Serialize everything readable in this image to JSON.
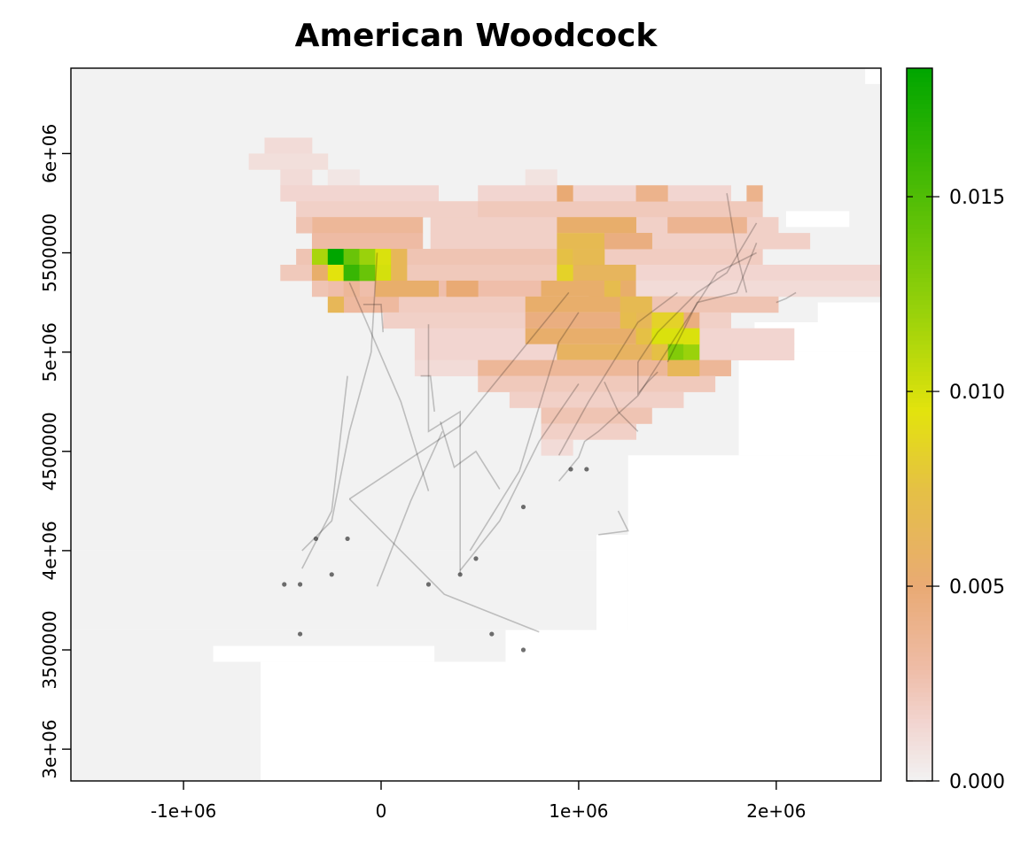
{
  "chart_data": {
    "type": "heatmap",
    "title": "American Woodcock",
    "xlabel": "",
    "ylabel": "",
    "xlim": [
      -1570000,
      2530000
    ],
    "ylim": [
      2840000,
      6430000
    ],
    "x_ticks": [
      {
        "value": -1000000,
        "label": "-1e+06"
      },
      {
        "value": 0,
        "label": "0"
      },
      {
        "value": 1000000,
        "label": "1e+06"
      },
      {
        "value": 2000000,
        "label": "2e+06"
      }
    ],
    "y_ticks": [
      {
        "value": 3000000,
        "label": "3e+06"
      },
      {
        "value": 3500000,
        "label": "3500000"
      },
      {
        "value": 4000000,
        "label": "4e+06"
      },
      {
        "value": 4500000,
        "label": "4500000"
      },
      {
        "value": 5000000,
        "label": "5e+06"
      },
      {
        "value": 5500000,
        "label": "5500000"
      },
      {
        "value": 6000000,
        "label": "6e+06"
      }
    ],
    "colorbar": {
      "min": 0.0,
      "max": 0.0183,
      "ticks": [
        {
          "value": 0.0,
          "label": "0.000"
        },
        {
          "value": 0.005,
          "label": "0.005"
        },
        {
          "value": 0.01,
          "label": "0.010"
        },
        {
          "value": 0.015,
          "label": "0.015"
        }
      ],
      "stops": [
        {
          "value": 0.0,
          "color": "#f2f2f2"
        },
        {
          "value": 0.0015,
          "color": "#f2d5d0"
        },
        {
          "value": 0.003,
          "color": "#eebba4"
        },
        {
          "value": 0.005,
          "color": "#e9aa74"
        },
        {
          "value": 0.0075,
          "color": "#e5c045"
        },
        {
          "value": 0.0095,
          "color": "#e3e30d"
        },
        {
          "value": 0.012,
          "color": "#9ad20b"
        },
        {
          "value": 0.0183,
          "color": "#00a600"
        }
      ]
    },
    "na_color": "#ffffff",
    "cell_size": 80000,
    "grid_origin": {
      "x": -1570000,
      "y": 6430000
    },
    "grid_cols": 51,
    "grid_rows": 45,
    "background_blocks": [
      {
        "x0": -1570000,
        "x1": 2530000,
        "y0": 4000000,
        "y1": 6430000,
        "value": 0.0
      },
      {
        "x0": -1570000,
        "x1": 2530000,
        "y0": 3600000,
        "y1": 4000000,
        "value": 0.0
      },
      {
        "x0": -1570000,
        "x1": 630000,
        "y0": 2840000,
        "y1": 3600000,
        "value": 0.0
      }
    ],
    "white_blocks": [
      {
        "x0": -610000,
        "x1": 1010000,
        "y0": 2840000,
        "y1": 3440000
      },
      {
        "x0": -850000,
        "x1": 270000,
        "y0": 3440000,
        "y1": 3520000
      },
      {
        "x0": 1010000,
        "x1": 2530000,
        "y0": 2840000,
        "y1": 3520000
      },
      {
        "x0": 1250000,
        "x1": 2530000,
        "y0": 3520000,
        "y1": 4480000
      },
      {
        "x0": 1090000,
        "x1": 1250000,
        "y0": 3520000,
        "y1": 4080000
      },
      {
        "x0": 1810000,
        "x1": 2530000,
        "y0": 4480000,
        "y1": 5000000
      },
      {
        "x0": 1890000,
        "x1": 2530000,
        "y0": 5000000,
        "y1": 5150000
      },
      {
        "x0": 2210000,
        "x1": 2530000,
        "y0": 5150000,
        "y1": 5250000
      },
      {
        "x0": 2050000,
        "x1": 2370000,
        "y0": 5630000,
        "y1": 5710000
      },
      {
        "x0": 2450000,
        "x1": 2530000,
        "y0": 6350000,
        "y1": 6430000
      }
    ],
    "cells": [
      {
        "x": -590000,
        "y": 6000000,
        "w": 3,
        "h": 1,
        "value": 0.0012
      },
      {
        "x": -670000,
        "y": 5920000,
        "w": 5,
        "h": 1,
        "value": 0.001
      },
      {
        "x": -510000,
        "y": 5840000,
        "w": 2,
        "h": 1,
        "value": 0.0012
      },
      {
        "x": -270000,
        "y": 5840000,
        "w": 2,
        "h": 1,
        "value": 0.0006
      },
      {
        "x": -510000,
        "y": 5760000,
        "w": 10,
        "h": 1,
        "value": 0.0015
      },
      {
        "x": -430000,
        "y": 5680000,
        "w": 13,
        "h": 1,
        "value": 0.0018
      },
      {
        "x": 730000,
        "y": 5840000,
        "w": 2,
        "h": 1,
        "value": 0.0008
      },
      {
        "x": 490000,
        "y": 5760000,
        "w": 16,
        "h": 1,
        "value": 0.0015
      },
      {
        "x": 490000,
        "y": 5680000,
        "w": 18,
        "h": 1,
        "value": 0.0022
      },
      {
        "x": 890000,
        "y": 5760000,
        "w": 1,
        "h": 1,
        "value": 0.005
      },
      {
        "x": 1290000,
        "y": 5760000,
        "w": 2,
        "h": 1,
        "value": 0.004
      },
      {
        "x": 1850000,
        "y": 5760000,
        "w": 1,
        "h": 1,
        "value": 0.004
      },
      {
        "x": -350000,
        "y": 5600000,
        "w": 7,
        "h": 1,
        "value": 0.0035
      },
      {
        "x": -430000,
        "y": 5600000,
        "w": 1,
        "h": 1,
        "value": 0.0025
      },
      {
        "x": 250000,
        "y": 5600000,
        "w": 22,
        "h": 1,
        "value": 0.0018
      },
      {
        "x": 890000,
        "y": 5600000,
        "w": 5,
        "h": 1,
        "value": 0.0055
      },
      {
        "x": -350000,
        "y": 5520000,
        "w": 7,
        "h": 1,
        "value": 0.003
      },
      {
        "x": 250000,
        "y": 5520000,
        "w": 24,
        "h": 1,
        "value": 0.0018
      },
      {
        "x": 890000,
        "y": 5520000,
        "w": 6,
        "h": 1,
        "value": 0.0068
      },
      {
        "x": -430000,
        "y": 5440000,
        "w": 29,
        "h": 1,
        "value": 0.0025
      },
      {
        "x": 1130000,
        "y": 5440000,
        "w": 10,
        "h": 1,
        "value": 0.002
      },
      {
        "x": -510000,
        "y": 5360000,
        "w": 30,
        "h": 1,
        "value": 0.0022
      },
      {
        "x": -270000,
        "y": 5280000,
        "w": 25,
        "h": 1,
        "value": 0.0028
      },
      {
        "x": 890000,
        "y": 5360000,
        "w": 5,
        "h": 1,
        "value": 0.0062
      },
      {
        "x": 810000,
        "y": 5280000,
        "w": 8,
        "h": 1,
        "value": 0.0055
      },
      {
        "x": 1290000,
        "y": 5360000,
        "w": 16,
        "h": 1,
        "value": 0.0015
      },
      {
        "x": 1290000,
        "y": 5280000,
        "w": 19,
        "h": 1,
        "value": 0.0012
      },
      {
        "x": -190000,
        "y": 5200000,
        "w": 6,
        "h": 1,
        "value": 0.0032
      },
      {
        "x": 90000,
        "y": 5200000,
        "w": 12,
        "h": 1,
        "value": 0.002
      },
      {
        "x": 730000,
        "y": 5200000,
        "w": 11,
        "h": 1,
        "value": 0.0055
      },
      {
        "x": 1370000,
        "y": 5200000,
        "w": 8,
        "h": 1,
        "value": 0.0025
      },
      {
        "x": 10000,
        "y": 5120000,
        "w": 22,
        "h": 1,
        "value": 0.0018
      },
      {
        "x": 730000,
        "y": 5120000,
        "w": 11,
        "h": 1,
        "value": 0.0045
      },
      {
        "x": 170000,
        "y": 5040000,
        "w": 24,
        "h": 1,
        "value": 0.0015
      },
      {
        "x": 730000,
        "y": 5040000,
        "w": 11,
        "h": 1,
        "value": 0.0055
      },
      {
        "x": 170000,
        "y": 4960000,
        "w": 24,
        "h": 1,
        "value": 0.0015
      },
      {
        "x": 890000,
        "y": 4960000,
        "w": 9,
        "h": 1,
        "value": 0.006
      },
      {
        "x": 1610000,
        "y": 4960000,
        "w": 2,
        "h": 1,
        "value": 0.0015
      },
      {
        "x": 170000,
        "y": 4880000,
        "w": 16,
        "h": 1,
        "value": 0.0012
      },
      {
        "x": 490000,
        "y": 4880000,
        "w": 4,
        "h": 1,
        "value": 0.0035
      },
      {
        "x": 810000,
        "y": 4880000,
        "w": 12,
        "h": 1,
        "value": 0.0035
      },
      {
        "x": 490000,
        "y": 4800000,
        "w": 15,
        "h": 1,
        "value": 0.0022
      },
      {
        "x": 650000,
        "y": 4720000,
        "w": 11,
        "h": 1,
        "value": 0.0018
      },
      {
        "x": 810000,
        "y": 4640000,
        "w": 7,
        "h": 1,
        "value": 0.0025
      },
      {
        "x": 810000,
        "y": 4560000,
        "w": 6,
        "h": 1,
        "value": 0.0018
      },
      {
        "x": 810000,
        "y": 4480000,
        "w": 2,
        "h": 1,
        "value": 0.0012
      },
      {
        "x": -270000,
        "y": 5200000,
        "w": 1,
        "h": 1,
        "value": 0.0065
      },
      {
        "x": -190000,
        "y": 5280000,
        "w": 1,
        "h": 1,
        "value": 0.0035
      },
      {
        "x": 1290000,
        "y": 5120000,
        "w": 1,
        "h": 1,
        "value": 0.0065
      },
      {
        "x": -350000,
        "y": 5440000,
        "w": 1,
        "h": 1,
        "value": 0.0115
      },
      {
        "x": -270000,
        "y": 5440000,
        "w": 1,
        "h": 1,
        "value": 0.0183
      },
      {
        "x": -190000,
        "y": 5440000,
        "w": 1,
        "h": 1,
        "value": 0.014
      },
      {
        "x": -110000,
        "y": 5440000,
        "w": 1,
        "h": 1,
        "value": 0.012
      },
      {
        "x": -30000,
        "y": 5440000,
        "w": 1,
        "h": 1,
        "value": 0.0098
      },
      {
        "x": 50000,
        "y": 5440000,
        "w": 1,
        "h": 1,
        "value": 0.0065
      },
      {
        "x": -350000,
        "y": 5360000,
        "w": 1,
        "h": 1,
        "value": 0.0055
      },
      {
        "x": -270000,
        "y": 5360000,
        "w": 1,
        "h": 1,
        "value": 0.0095
      },
      {
        "x": -190000,
        "y": 5360000,
        "w": 1,
        "h": 1,
        "value": 0.016
      },
      {
        "x": -110000,
        "y": 5360000,
        "w": 1,
        "h": 1,
        "value": 0.014
      },
      {
        "x": -30000,
        "y": 5360000,
        "w": 1,
        "h": 1,
        "value": 0.01
      },
      {
        "x": 50000,
        "y": 5360000,
        "w": 1,
        "h": 1,
        "value": 0.0065
      },
      {
        "x": -350000,
        "y": 5280000,
        "w": 1,
        "h": 1,
        "value": 0.0025
      },
      {
        "x": -30000,
        "y": 5280000,
        "w": 4,
        "h": 1,
        "value": 0.0055
      },
      {
        "x": 330000,
        "y": 5280000,
        "w": 2,
        "h": 1,
        "value": 0.005
      },
      {
        "x": 890000,
        "y": 5440000,
        "w": 1,
        "h": 1,
        "value": 0.0075
      },
      {
        "x": 970000,
        "y": 5440000,
        "w": 2,
        "h": 1,
        "value": 0.0068
      },
      {
        "x": 890000,
        "y": 5360000,
        "w": 1,
        "h": 1,
        "value": 0.0085
      },
      {
        "x": 1290000,
        "y": 5040000,
        "w": 2,
        "h": 1,
        "value": 0.0075
      },
      {
        "x": 1210000,
        "y": 5120000,
        "w": 1,
        "h": 1,
        "value": 0.007
      },
      {
        "x": 1370000,
        "y": 5120000,
        "w": 2,
        "h": 1,
        "value": 0.0085
      },
      {
        "x": 1370000,
        "y": 5040000,
        "w": 2,
        "h": 1,
        "value": 0.0098
      },
      {
        "x": 1530000,
        "y": 5040000,
        "w": 1,
        "h": 1,
        "value": 0.007
      },
      {
        "x": 1450000,
        "y": 4960000,
        "w": 1,
        "h": 1,
        "value": 0.013
      },
      {
        "x": 1530000,
        "y": 4960000,
        "w": 1,
        "h": 1,
        "value": 0.012
      },
      {
        "x": 1370000,
        "y": 4960000,
        "w": 1,
        "h": 1,
        "value": 0.0075
      },
      {
        "x": 1530000,
        "y": 5040000,
        "w": 1,
        "h": 1,
        "value": 0.0098
      },
      {
        "x": 1450000,
        "y": 4880000,
        "w": 2,
        "h": 1,
        "value": 0.0065
      },
      {
        "x": 1130000,
        "y": 5280000,
        "w": 1,
        "h": 1,
        "value": 0.007
      },
      {
        "x": 1210000,
        "y": 5200000,
        "w": 2,
        "h": 1,
        "value": 0.0068
      },
      {
        "x": 1130000,
        "y": 5520000,
        "w": 3,
        "h": 1,
        "value": 0.0045
      },
      {
        "x": 1450000,
        "y": 5600000,
        "w": 5,
        "h": 1,
        "value": 0.0038
      }
    ],
    "tracks": [
      [
        [
          -400000,
          3910000
        ],
        [
          -250000,
          4200000
        ],
        [
          -170000,
          4880000
        ]
      ],
      [
        [
          -400000,
          4000000
        ],
        [
          -250000,
          4150000
        ],
        [
          -160000,
          4600000
        ],
        [
          -50000,
          5000000
        ],
        [
          -20000,
          5500000
        ]
      ],
      [
        [
          -160000,
          5350000
        ],
        [
          100000,
          4750000
        ],
        [
          240000,
          4300000
        ]
      ],
      [
        [
          -20000,
          3820000
        ],
        [
          150000,
          4250000
        ],
        [
          310000,
          4600000
        ]
      ],
      [
        [
          -160000,
          4260000
        ],
        [
          100000,
          4000000
        ],
        [
          320000,
          3780000
        ],
        [
          800000,
          3590000
        ]
      ],
      [
        [
          -160000,
          4260000
        ],
        [
          400000,
          4630000
        ],
        [
          950000,
          5300000
        ]
      ],
      [
        [
          240000,
          5140000
        ],
        [
          240000,
          4600000
        ],
        [
          400000,
          4700000
        ],
        [
          400000,
          3880000
        ]
      ],
      [
        [
          -90000,
          5240000
        ],
        [
          0,
          5240000
        ],
        [
          10000,
          5100000
        ]
      ],
      [
        [
          200000,
          4880000
        ],
        [
          250000,
          4880000
        ],
        [
          270000,
          4700000
        ]
      ],
      [
        [
          300000,
          4650000
        ],
        [
          370000,
          4420000
        ],
        [
          480000,
          4500000
        ],
        [
          600000,
          4310000
        ]
      ],
      [
        [
          400000,
          3900000
        ],
        [
          600000,
          4150000
        ],
        [
          800000,
          4550000
        ],
        [
          1000000,
          4840000
        ]
      ],
      [
        [
          450000,
          4000000
        ],
        [
          700000,
          4400000
        ],
        [
          900000,
          5050000
        ],
        [
          1000000,
          5200000
        ]
      ],
      [
        [
          900000,
          4480000
        ],
        [
          1050000,
          4750000
        ],
        [
          1300000,
          5150000
        ],
        [
          1500000,
          5300000
        ]
      ],
      [
        [
          900000,
          4350000
        ],
        [
          1000000,
          4470000
        ],
        [
          1030000,
          4550000
        ],
        [
          1100000,
          4600000
        ],
        [
          1300000,
          4780000
        ],
        [
          1700000,
          5400000
        ],
        [
          1900000,
          5500000
        ]
      ],
      [
        [
          1300000,
          4950000
        ],
        [
          1400000,
          5100000
        ],
        [
          1600000,
          5300000
        ],
        [
          1750000,
          5400000
        ],
        [
          1900000,
          5650000
        ]
      ],
      [
        [
          1450000,
          4950000
        ],
        [
          1600000,
          5250000
        ],
        [
          1800000,
          5300000
        ],
        [
          1900000,
          5550000
        ]
      ],
      [
        [
          1750000,
          5800000
        ],
        [
          1800000,
          5500000
        ],
        [
          1850000,
          5300000
        ]
      ],
      [
        [
          1300000,
          4950000
        ],
        [
          1300000,
          4790000
        ],
        [
          1350000,
          4850000
        ],
        [
          1400000,
          4900000
        ]
      ],
      [
        [
          1130000,
          4850000
        ],
        [
          1200000,
          4700000
        ],
        [
          1300000,
          4600000
        ]
      ],
      [
        [
          2000000,
          5250000
        ],
        [
          2050000,
          5270000
        ],
        [
          2100000,
          5300000
        ]
      ],
      [
        [
          1200000,
          4200000
        ],
        [
          1250000,
          4100000
        ],
        [
          1100000,
          4080000
        ]
      ]
    ],
    "points": [
      [
        -330000,
        4060000
      ],
      [
        -170000,
        4060000
      ],
      [
        -250000,
        3880000
      ],
      [
        -490000,
        3830000
      ],
      [
        -410000,
        3830000
      ],
      [
        -410000,
        3580000
      ],
      [
        240000,
        3830000
      ],
      [
        400000,
        3880000
      ],
      [
        480000,
        3960000
      ],
      [
        560000,
        3580000
      ],
      [
        720000,
        3500000
      ],
      [
        720000,
        4220000
      ],
      [
        960000,
        4410000
      ],
      [
        1040000,
        4410000
      ]
    ]
  }
}
